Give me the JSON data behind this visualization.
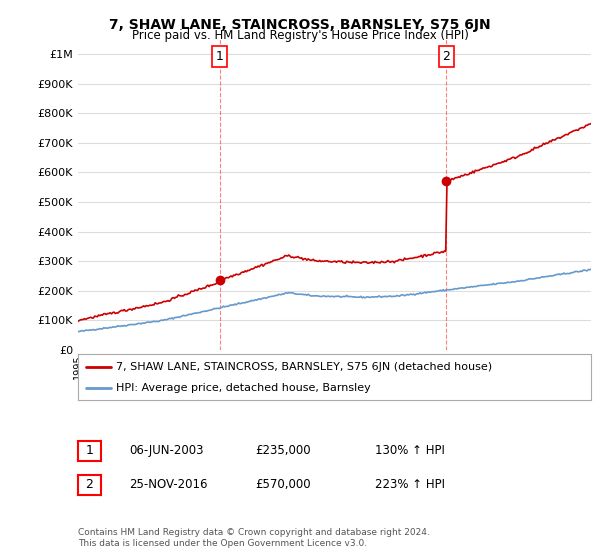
{
  "title": "7, SHAW LANE, STAINCROSS, BARNSLEY, S75 6JN",
  "subtitle": "Price paid vs. HM Land Registry's House Price Index (HPI)",
  "ylim": [
    0,
    1050000
  ],
  "yticks": [
    0,
    100000,
    200000,
    300000,
    400000,
    500000,
    600000,
    700000,
    800000,
    900000,
    1000000
  ],
  "ytick_labels": [
    "£0",
    "£100K",
    "£200K",
    "£300K",
    "£400K",
    "£500K",
    "£600K",
    "£700K",
    "£800K",
    "£900K",
    "£1M"
  ],
  "sale1_date_num": 2003.43,
  "sale1_price": 235000,
  "sale1_label": "1",
  "sale2_date_num": 2016.9,
  "sale2_price": 570000,
  "sale2_label": "2",
  "house_color": "#cc0000",
  "hpi_color": "#6699cc",
  "legend_house": "7, SHAW LANE, STAINCROSS, BARNSLEY, S75 6JN (detached house)",
  "legend_hpi": "HPI: Average price, detached house, Barnsley",
  "annotation1_box": "1",
  "annotation1_date": "06-JUN-2003",
  "annotation1_price": "£235,000",
  "annotation1_hpi": "130% ↑ HPI",
  "annotation2_box": "2",
  "annotation2_date": "25-NOV-2016",
  "annotation2_price": "£570,000",
  "annotation2_hpi": "223% ↑ HPI",
  "footer": "Contains HM Land Registry data © Crown copyright and database right 2024.\nThis data is licensed under the Open Government Licence v3.0.",
  "xmin": 1995,
  "xmax": 2025.5,
  "background_color": "#ffffff",
  "grid_color": "#dddddd"
}
